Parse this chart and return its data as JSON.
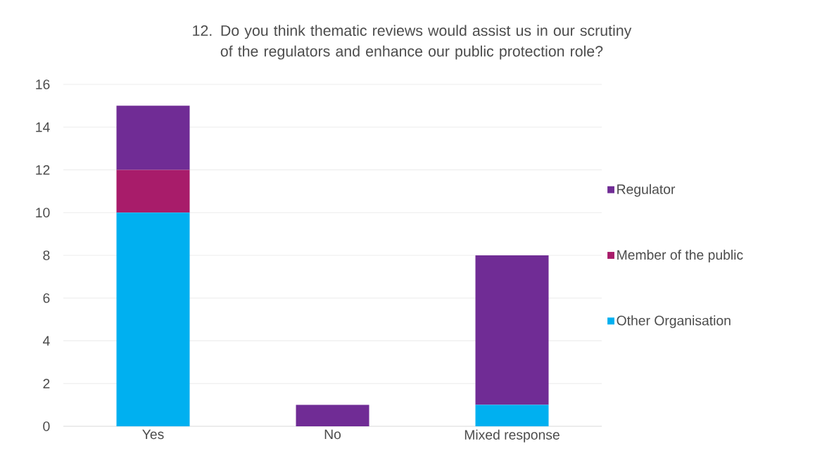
{
  "chart_data": {
    "type": "bar",
    "title": "12. Do you think thematic reviews would assist us in our scrutiny of the regulators and enhance our public protection role?",
    "categories": [
      "Yes",
      "No",
      "Mixed response"
    ],
    "stacked": true,
    "series": [
      {
        "name": "Other Organisation",
        "color": "#00b0f0",
        "values": [
          10,
          0,
          1
        ]
      },
      {
        "name": "Member of the public",
        "color": "#a81c6a",
        "values": [
          2,
          0,
          0
        ]
      },
      {
        "name": "Regulator",
        "color": "#702c95",
        "values": [
          3,
          1,
          7
        ]
      }
    ],
    "ylim": [
      0,
      16
    ],
    "yticks": [
      0,
      2,
      4,
      6,
      8,
      10,
      12,
      14,
      16
    ],
    "grid": "y",
    "legend": "right"
  }
}
